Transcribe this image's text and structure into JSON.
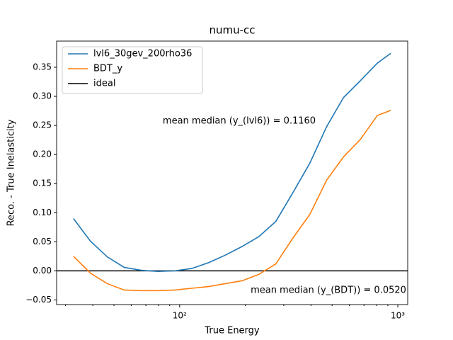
{
  "chart_data": {
    "type": "line",
    "title": "numu-cc",
    "xlabel": "True Energy",
    "ylabel": "Reco. - True Inelasticity",
    "xscale": "log",
    "x": [
      32.6,
      39,
      46.6,
      55.7,
      66.5,
      79.5,
      95,
      113.5,
      135.6,
      162,
      193.6,
      231,
      276,
      330,
      395,
      472,
      564,
      674,
      805,
      929
    ],
    "series": [
      {
        "name": "lvl6_30gev_200rho36",
        "color": "#1f77b4",
        "values": [
          0.09,
          0.051,
          0.024,
          0.006,
          0.001,
          -0.001,
          0.0,
          0.004,
          0.014,
          0.027,
          0.042,
          0.059,
          0.085,
          0.134,
          0.185,
          0.248,
          0.298,
          0.327,
          0.357,
          0.374
        ]
      },
      {
        "name": "BDT_y",
        "color": "#ff7f0e",
        "values": [
          0.025,
          -0.004,
          -0.022,
          -0.033,
          -0.034,
          -0.034,
          -0.033,
          -0.03,
          -0.027,
          -0.022,
          -0.017,
          -0.006,
          0.012,
          0.056,
          0.097,
          0.156,
          0.196,
          0.226,
          0.267,
          0.276
        ]
      }
    ],
    "reference_line": {
      "name": "ideal",
      "value": 0,
      "color": "#000000"
    },
    "annotations": [
      "mean median (y_(lvl6)) = 0.1160",
      "mean median (y_(BDT)) = 0.0520"
    ],
    "xlim": [
      27.3,
      1110
    ],
    "ylim": [
      -0.058,
      0.395
    ],
    "xticks": [
      {
        "value": 100,
        "label": "10²"
      },
      {
        "value": 1000,
        "label": "10³"
      }
    ],
    "xminorticks": [
      30,
      40,
      50,
      60,
      70,
      80,
      90,
      200,
      300,
      400,
      500,
      600,
      700,
      800,
      900
    ],
    "yticks": [
      {
        "value": -0.05,
        "label": "−0.05"
      },
      {
        "value": 0,
        "label": "0.00"
      },
      {
        "value": 0.05,
        "label": "0.05"
      },
      {
        "value": 0.1,
        "label": "0.10"
      },
      {
        "value": 0.15,
        "label": "0.15"
      },
      {
        "value": 0.2,
        "label": "0.20"
      },
      {
        "value": 0.25,
        "label": "0.25"
      },
      {
        "value": 0.3,
        "label": "0.30"
      },
      {
        "value": 0.35,
        "label": "0.35"
      }
    ],
    "legend": "upper left",
    "grid": false
  }
}
